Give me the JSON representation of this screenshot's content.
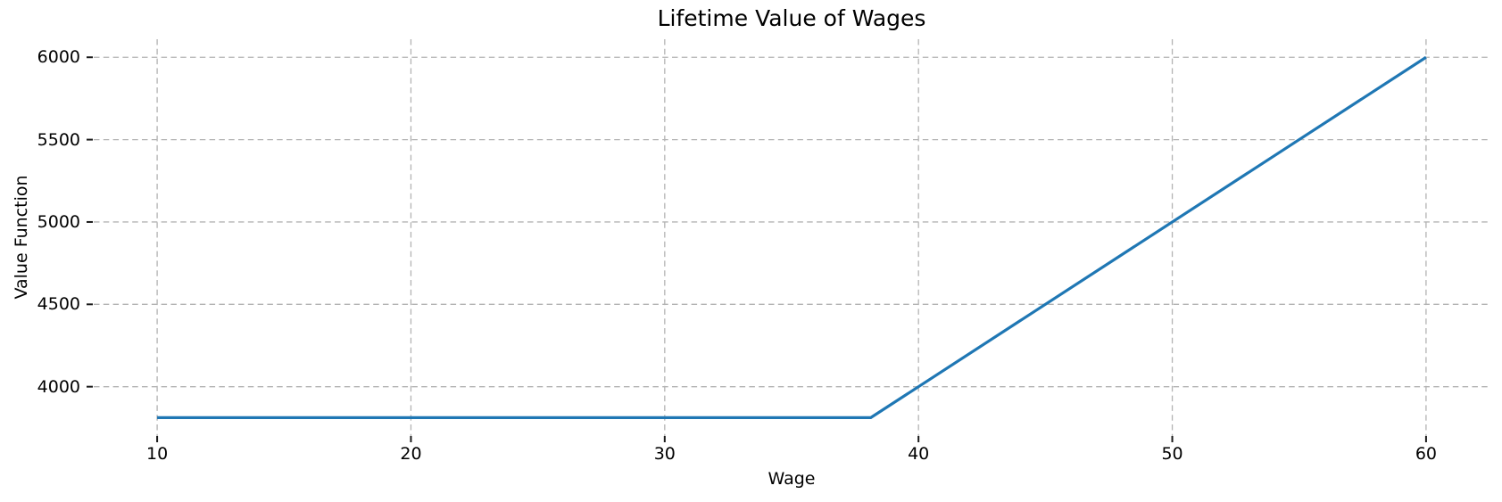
{
  "window": {
    "background_color": "#ffffff"
  },
  "chart_data": {
    "type": "line",
    "title": "Lifetime Value of Wages",
    "xlabel": "Wage",
    "ylabel": "Value Function",
    "series": [
      {
        "name": "value-function",
        "x": [
          10,
          15,
          20,
          25,
          30,
          35,
          38.12,
          40,
          45,
          50,
          55,
          60
        ],
        "y": [
          3812,
          3812,
          3812,
          3812,
          3812,
          3812,
          3812,
          4000,
          4500,
          5000,
          5500,
          6000
        ],
        "color": "#1f77b4",
        "line_width": 3.2
      }
    ],
    "xlim": [
      7.5,
      62.5
    ],
    "ylim": [
      3700.5,
      6109.5
    ],
    "xticks": [
      10,
      20,
      30,
      40,
      50,
      60
    ],
    "yticks": [
      4000,
      4500,
      5000,
      5500,
      6000
    ],
    "xtick_labels": [
      "10",
      "20",
      "30",
      "40",
      "50",
      "60"
    ],
    "ytick_labels": [
      "4000",
      "4500",
      "5000",
      "5500",
      "6000"
    ],
    "grid": "on",
    "grid_style": "dashed",
    "grid_color": "#b3b3b3",
    "tick_color": "#1a1a1a",
    "text_color": "#000000",
    "legend": "none",
    "spines": "none"
  }
}
